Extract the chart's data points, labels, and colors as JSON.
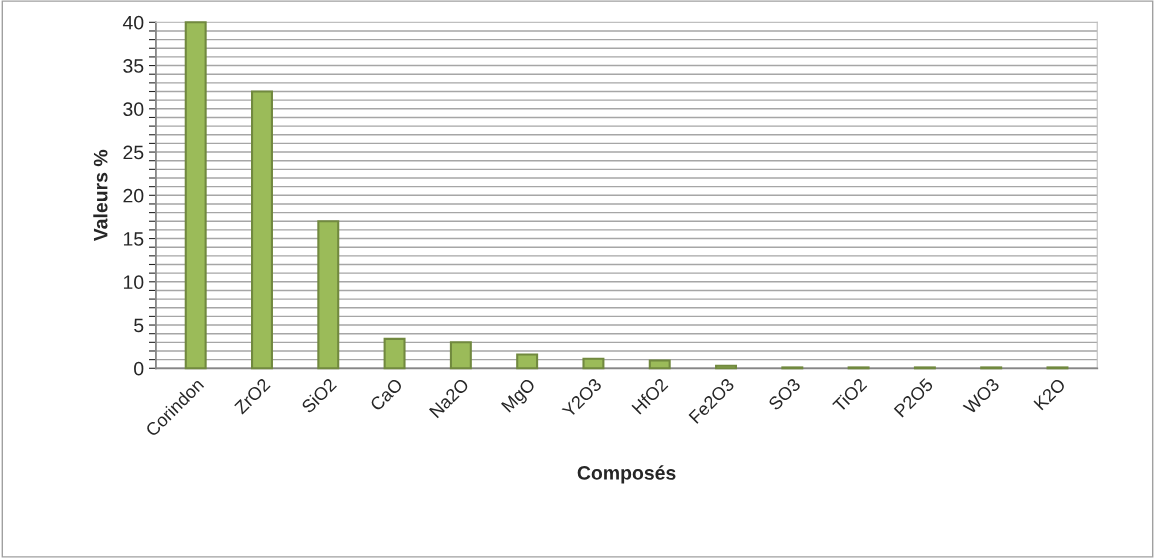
{
  "chart_data": {
    "type": "bar",
    "xlabel": "Composés",
    "ylabel": "Valeurs %",
    "categories": [
      "Corindon",
      "ZrO2",
      "SiO2",
      "CaO",
      "Na2O",
      "MgO",
      "Y2O3",
      "HfO2",
      "Fe2O3",
      "SO3",
      "TiO2",
      "P2O5",
      "WO3",
      "K2O"
    ],
    "values": [
      40,
      32,
      17,
      3.4,
      3.0,
      1.6,
      1.1,
      0.9,
      0.3,
      0.1,
      0.1,
      0.1,
      0.1,
      0.1
    ],
    "color": "#9bbb59",
    "ylim": [
      0,
      40
    ],
    "yticks": [
      0,
      {
        "value": 1,
        "label": null
      },
      {
        "value": 2,
        "label": null
      },
      {
        "value": 3,
        "label": null
      },
      {
        "value": 4,
        "label": null
      },
      5,
      {
        "value": 6,
        "label": null
      },
      {
        "value": 7,
        "label": null
      },
      {
        "value": 8,
        "label": null
      },
      {
        "value": 9,
        "label": null
      },
      10,
      {
        "value": 11,
        "label": null
      },
      {
        "value": 12,
        "label": null
      },
      {
        "value": 13,
        "label": null
      },
      {
        "value": 14,
        "label": null
      },
      15,
      {
        "value": 16,
        "label": null
      },
      {
        "value": 17,
        "label": null
      },
      {
        "value": 18,
        "label": null
      },
      {
        "value": 19,
        "label": null
      },
      20,
      {
        "value": 21,
        "label": null
      },
      {
        "value": 22,
        "label": null
      },
      {
        "value": 23,
        "label": null
      },
      {
        "value": 24,
        "label": null
      },
      25,
      {
        "value": 26,
        "label": null
      },
      {
        "value": 27,
        "label": null
      },
      {
        "value": 28,
        "label": null
      },
      {
        "value": 29,
        "label": null
      },
      30,
      {
        "value": 31,
        "label": null
      },
      {
        "value": 32,
        "label": null
      },
      {
        "value": 33,
        "label": null
      },
      {
        "value": 34,
        "label": null
      },
      35,
      {
        "value": 36,
        "label": null
      },
      {
        "value": 37,
        "label": null
      },
      {
        "value": 38,
        "label": null
      },
      {
        "value": 39,
        "label": null
      },
      40
    ],
    "grid": "y"
  }
}
